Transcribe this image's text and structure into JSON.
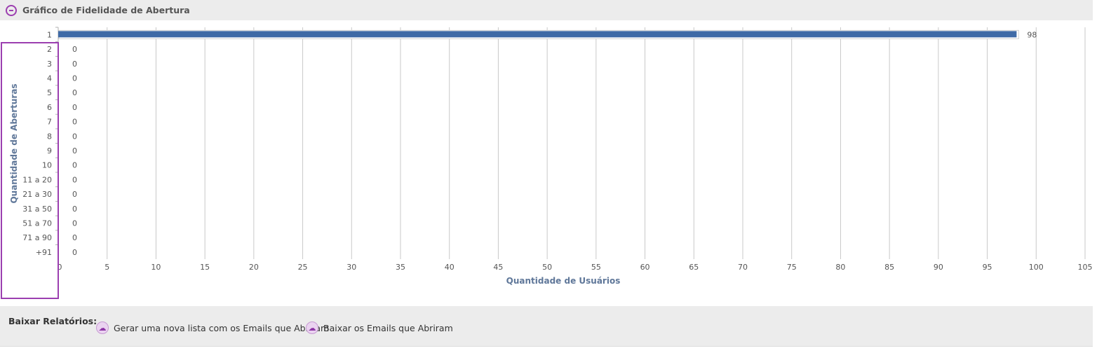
{
  "header": {
    "title": "Gráfico de Fidelidade de Abertura"
  },
  "chart_data": {
    "type": "bar",
    "orientation": "horizontal",
    "categories": [
      "1",
      "2",
      "3",
      "4",
      "5",
      "6",
      "7",
      "8",
      "9",
      "10",
      "11 a 20",
      "21 a 30",
      "31 a 50",
      "51 a 70",
      "71 a 90",
      "+91"
    ],
    "values": [
      98,
      0,
      0,
      0,
      0,
      0,
      0,
      0,
      0,
      0,
      0,
      0,
      0,
      0,
      0,
      0
    ],
    "xlabel": "Quantidade de Usuários",
    "ylabel": "Quantidade de Aberturas",
    "xlim": [
      0,
      105
    ],
    "xticks": [
      0,
      5,
      10,
      15,
      20,
      25,
      30,
      35,
      40,
      45,
      50,
      55,
      60,
      65,
      70,
      75,
      80,
      85,
      90,
      95,
      100,
      105
    ],
    "grid": true,
    "colors": {
      "bar": "#3f6aa6",
      "grid": "#c9c9c9",
      "axis_title": "#5f7799"
    }
  },
  "footer": {
    "label": "Baixar Relatórios:",
    "links": [
      {
        "label": "Gerar uma nova lista com os Emails que Abriram",
        "icon": "download-cloud-icon"
      },
      {
        "label": "Baixar os Emails que Abriram",
        "icon": "download-cloud-icon"
      }
    ]
  }
}
